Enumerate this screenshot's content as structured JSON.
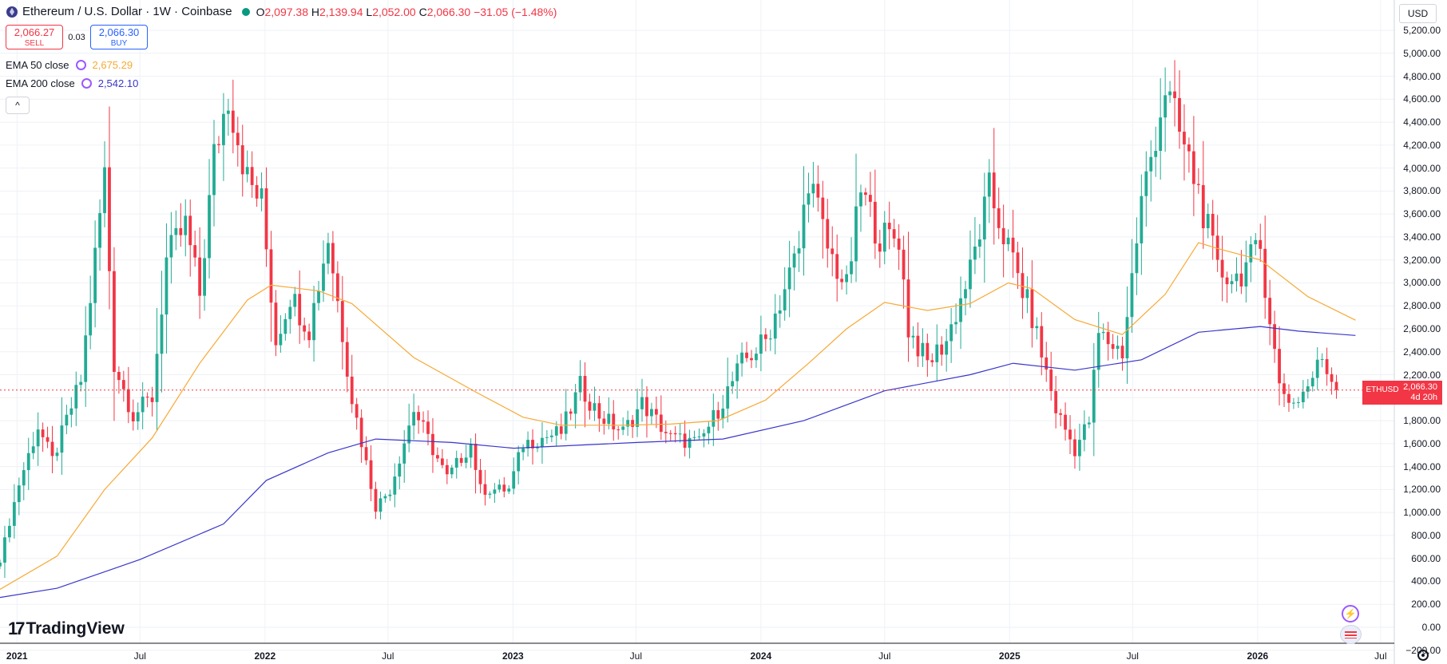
{
  "header": {
    "title": "Ethereum / U.S. Dollar · 1W · Coinbase",
    "ohlc": {
      "o_label": "O",
      "o": "2,097.38",
      "h_label": "H",
      "h": "2,139.94",
      "l_label": "L",
      "l": "2,052.00",
      "c_label": "C",
      "c": "2,066.30",
      "change": "−31.05 (−1.48%)"
    }
  },
  "trade": {
    "sell_price": "2,066.27",
    "sell_label": "SELL",
    "spread": "0.03",
    "buy_price": "2,066.30",
    "buy_label": "BUY"
  },
  "indicators": [
    {
      "name": "EMA 50 close",
      "value": "2,675.29",
      "color": "#f7a935"
    },
    {
      "name": "EMA 200 close",
      "value": "2,542.10",
      "color": "#3a36c9"
    }
  ],
  "collapse_icon": "chevron-up-icon",
  "currency": "USD",
  "price_tag": {
    "symbol": "ETHUSD",
    "price": "2,066.30",
    "countdown": "4d 20h"
  },
  "branding": {
    "logo_text": "TradingView",
    "logo_mark": "17"
  },
  "colors": {
    "up": "#22ab94",
    "down": "#f23645",
    "ema50": "#f7a935",
    "ema200": "#3a36c9",
    "grid": "#eef1f6"
  },
  "chart_data": {
    "type": "candlestick",
    "timeframe": "1W",
    "ylim": [
      -200,
      5400
    ],
    "y_ticks": [
      -200,
      0,
      200,
      400,
      600,
      800,
      1000,
      1200,
      1400,
      1600,
      1800,
      2000,
      2200,
      2400,
      2600,
      2800,
      3000,
      3200,
      3400,
      3600,
      3800,
      4000,
      4200,
      4400,
      4600,
      4800,
      5000,
      5200
    ],
    "y_tick_labels": [
      "−200.00",
      "0.00",
      "200.00",
      "400.00",
      "600.00",
      "800.00",
      "1,000.00",
      "1,200.00",
      "1,400.00",
      "1,600.00",
      "1,800.00",
      "2,000.00",
      "2,200.00",
      "2,400.00",
      "2,600.00",
      "2,800.00",
      "3,000.00",
      "3,200.00",
      "3,400.00",
      "3,600.00",
      "3,800.00",
      "4,000.00",
      "4,200.00",
      "4,400.00",
      "4,600.00",
      "4,800.00",
      "5,000.00",
      "5,200.00"
    ],
    "x_range": [
      "2020-12-07",
      "2026-07-20"
    ],
    "x_ticks": [
      {
        "label": "2021",
        "date": "2021-01-01"
      },
      {
        "label": "Jul",
        "date": "2021-07-01"
      },
      {
        "label": "2022",
        "date": "2022-01-01"
      },
      {
        "label": "Jul",
        "date": "2022-07-01"
      },
      {
        "label": "2023",
        "date": "2023-01-01"
      },
      {
        "label": "Jul",
        "date": "2023-07-01"
      },
      {
        "label": "2024",
        "date": "2024-01-01"
      },
      {
        "label": "Jul",
        "date": "2024-07-01"
      },
      {
        "label": "2025",
        "date": "2025-01-01"
      },
      {
        "label": "Jul",
        "date": "2025-07-01"
      },
      {
        "label": "2026",
        "date": "2026-01-01"
      },
      {
        "label": "Jul",
        "date": "2026-07-01"
      }
    ],
    "current_price": 2066.3,
    "close_path": [
      [
        "2020-12-07",
        590
      ],
      [
        "2021-01-04",
        1250
      ],
      [
        "2021-02-01",
        1750
      ],
      [
        "2021-02-22",
        1450
      ],
      [
        "2021-03-15",
        1800
      ],
      [
        "2021-04-05",
        2150
      ],
      [
        "2021-05-10",
        3950
      ],
      [
        "2021-05-24",
        2300
      ],
      [
        "2021-06-21",
        1850
      ],
      [
        "2021-07-19",
        2000
      ],
      [
        "2021-08-09",
        3200
      ],
      [
        "2021-09-06",
        3500
      ],
      [
        "2021-09-27",
        2900
      ],
      [
        "2021-10-18",
        4100
      ],
      [
        "2021-11-08",
        4650
      ],
      [
        "2021-12-06",
        3900
      ],
      [
        "2021-12-27",
        3700
      ],
      [
        "2022-01-17",
        2500
      ],
      [
        "2022-02-07",
        2900
      ],
      [
        "2022-03-07",
        2600
      ],
      [
        "2022-04-04",
        3400
      ],
      [
        "2022-05-09",
        2000
      ],
      [
        "2022-06-13",
        1050
      ],
      [
        "2022-07-04",
        1200
      ],
      [
        "2022-08-08",
        1900
      ],
      [
        "2022-09-05",
        1550
      ],
      [
        "2022-09-26",
        1300
      ],
      [
        "2022-10-31",
        1600
      ],
      [
        "2022-11-14",
        1200
      ],
      [
        "2022-12-26",
        1200
      ],
      [
        "2023-01-16",
        1600
      ],
      [
        "2023-03-13",
        1700
      ],
      [
        "2023-04-10",
        2100
      ],
      [
        "2023-05-08",
        1850
      ],
      [
        "2023-06-12",
        1700
      ],
      [
        "2023-07-10",
        1950
      ],
      [
        "2023-08-21",
        1650
      ],
      [
        "2023-10-02",
        1600
      ],
      [
        "2023-10-30",
        1900
      ],
      [
        "2023-12-04",
        2300
      ],
      [
        "2024-01-08",
        2500
      ],
      [
        "2024-02-26",
        3300
      ],
      [
        "2024-03-11",
        3950
      ],
      [
        "2024-04-08",
        3300
      ],
      [
        "2024-05-06",
        2950
      ],
      [
        "2024-05-27",
        3800
      ],
      [
        "2024-06-24",
        3400
      ],
      [
        "2024-07-22",
        3400
      ],
      [
        "2024-08-05",
        2600
      ],
      [
        "2024-09-02",
        2300
      ],
      [
        "2024-09-30",
        2500
      ],
      [
        "2024-11-04",
        3100
      ],
      [
        "2024-12-02",
        3800
      ],
      [
        "2024-12-30",
        3300
      ],
      [
        "2025-02-03",
        2700
      ],
      [
        "2025-03-10",
        1900
      ],
      [
        "2025-04-07",
        1550
      ],
      [
        "2025-04-28",
        1800
      ],
      [
        "2025-05-12",
        2550
      ],
      [
        "2025-06-16",
        2400
      ],
      [
        "2025-07-14",
        3700
      ],
      [
        "2025-08-18",
        4700
      ],
      [
        "2025-09-08",
        4300
      ],
      [
        "2025-10-06",
        3800
      ],
      [
        "2025-11-03",
        3100
      ],
      [
        "2025-12-01",
        3050
      ],
      [
        "2026-01-05",
        3300
      ],
      [
        "2026-02-02",
        2100
      ],
      [
        "2026-02-23",
        1950
      ],
      [
        "2026-03-16",
        2100
      ],
      [
        "2026-04-06",
        2350
      ],
      [
        "2026-04-27",
        2066.3
      ]
    ],
    "ema50_path": [
      [
        "2020-12-07",
        330
      ],
      [
        "2021-03-01",
        620
      ],
      [
        "2021-05-10",
        1200
      ],
      [
        "2021-07-19",
        1650
      ],
      [
        "2021-09-27",
        2300
      ],
      [
        "2021-12-06",
        2850
      ],
      [
        "2022-01-10",
        2980
      ],
      [
        "2022-03-21",
        2930
      ],
      [
        "2022-05-09",
        2820
      ],
      [
        "2022-08-08",
        2350
      ],
      [
        "2022-11-07",
        2050
      ],
      [
        "2023-01-16",
        1830
      ],
      [
        "2023-03-13",
        1760
      ],
      [
        "2023-06-12",
        1760
      ],
      [
        "2023-08-21",
        1770
      ],
      [
        "2023-10-30",
        1800
      ],
      [
        "2024-01-08",
        1980
      ],
      [
        "2024-03-11",
        2300
      ],
      [
        "2024-05-06",
        2600
      ],
      [
        "2024-07-01",
        2830
      ],
      [
        "2024-09-02",
        2760
      ],
      [
        "2024-11-04",
        2820
      ],
      [
        "2024-12-30",
        3000
      ],
      [
        "2025-02-03",
        2950
      ],
      [
        "2025-04-07",
        2680
      ],
      [
        "2025-06-16",
        2550
      ],
      [
        "2025-08-18",
        2900
      ],
      [
        "2025-10-06",
        3350
      ],
      [
        "2025-11-03",
        3300
      ],
      [
        "2026-01-05",
        3200
      ],
      [
        "2026-03-16",
        2880
      ],
      [
        "2026-05-25",
        2675.29
      ]
    ],
    "ema200_path": [
      [
        "2020-12-07",
        260
      ],
      [
        "2021-03-01",
        340
      ],
      [
        "2021-07-01",
        590
      ],
      [
        "2021-11-01",
        900
      ],
      [
        "2022-01-03",
        1280
      ],
      [
        "2022-04-04",
        1520
      ],
      [
        "2022-06-13",
        1640
      ],
      [
        "2022-10-03",
        1610
      ],
      [
        "2023-01-02",
        1560
      ],
      [
        "2023-07-03",
        1610
      ],
      [
        "2023-11-06",
        1640
      ],
      [
        "2024-03-04",
        1800
      ],
      [
        "2024-07-01",
        2060
      ],
      [
        "2024-11-04",
        2200
      ],
      [
        "2025-01-06",
        2300
      ],
      [
        "2025-04-07",
        2240
      ],
      [
        "2025-07-14",
        2330
      ],
      [
        "2025-10-06",
        2570
      ],
      [
        "2026-01-05",
        2620
      ],
      [
        "2026-03-02",
        2580
      ],
      [
        "2026-05-25",
        2542.1
      ]
    ]
  }
}
